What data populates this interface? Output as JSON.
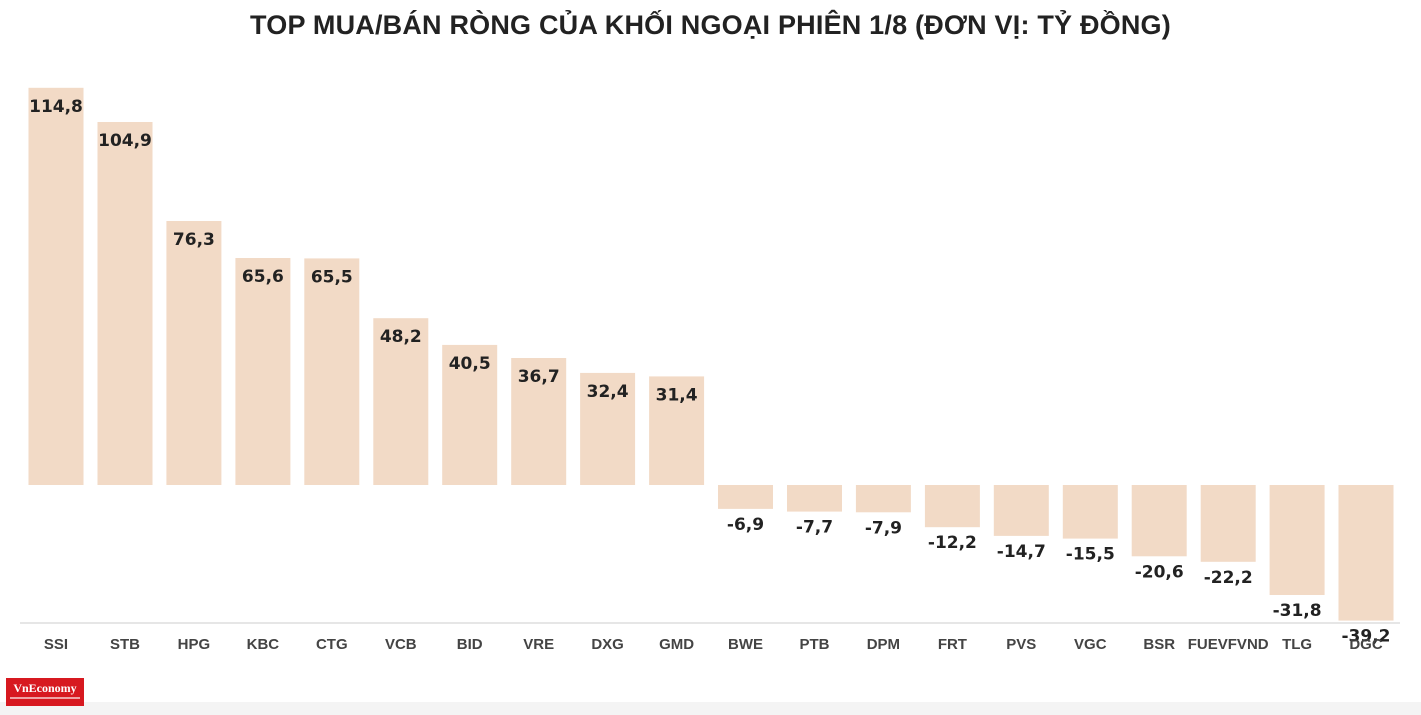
{
  "chart_data": {
    "type": "bar",
    "title": "TOP MUA/BÁN RÒNG CỦA KHỐI NGOẠI PHIÊN 1/8 (ĐƠN VỊ: TỶ ĐỒNG)",
    "categories": [
      "SSI",
      "STB",
      "HPG",
      "KBC",
      "CTG",
      "VCB",
      "BID",
      "VRE",
      "DXG",
      "GMD",
      "BWE",
      "PTB",
      "DPM",
      "FRT",
      "PVS",
      "VGC",
      "BSR",
      "FUEVFVND",
      "TLG",
      "DGC"
    ],
    "values": [
      114.8,
      104.9,
      76.3,
      65.6,
      65.5,
      48.2,
      40.5,
      36.7,
      32.4,
      31.4,
      -6.9,
      -7.7,
      -7.9,
      -12.2,
      -14.7,
      -15.5,
      -20.6,
      -22.2,
      -31.8,
      -39.2
    ],
    "value_labels": [
      "114,8",
      "104,9",
      "76,3",
      "65,6",
      "65,5",
      "48,2",
      "40,5",
      "36,7",
      "32,4",
      "31,4",
      "-6,9",
      "-7,7",
      "-7,9",
      "-12,2",
      "-14,7",
      "-15,5",
      "-20,6",
      "-22,2",
      "-31,8",
      "-39,2"
    ],
    "bar_color": "#f2dac6",
    "xlabel": "",
    "ylabel": "",
    "ylim": [
      -39.2,
      114.8
    ],
    "grid": false,
    "legend": "none"
  },
  "branding": {
    "logo_text": "VnEconomy"
  }
}
